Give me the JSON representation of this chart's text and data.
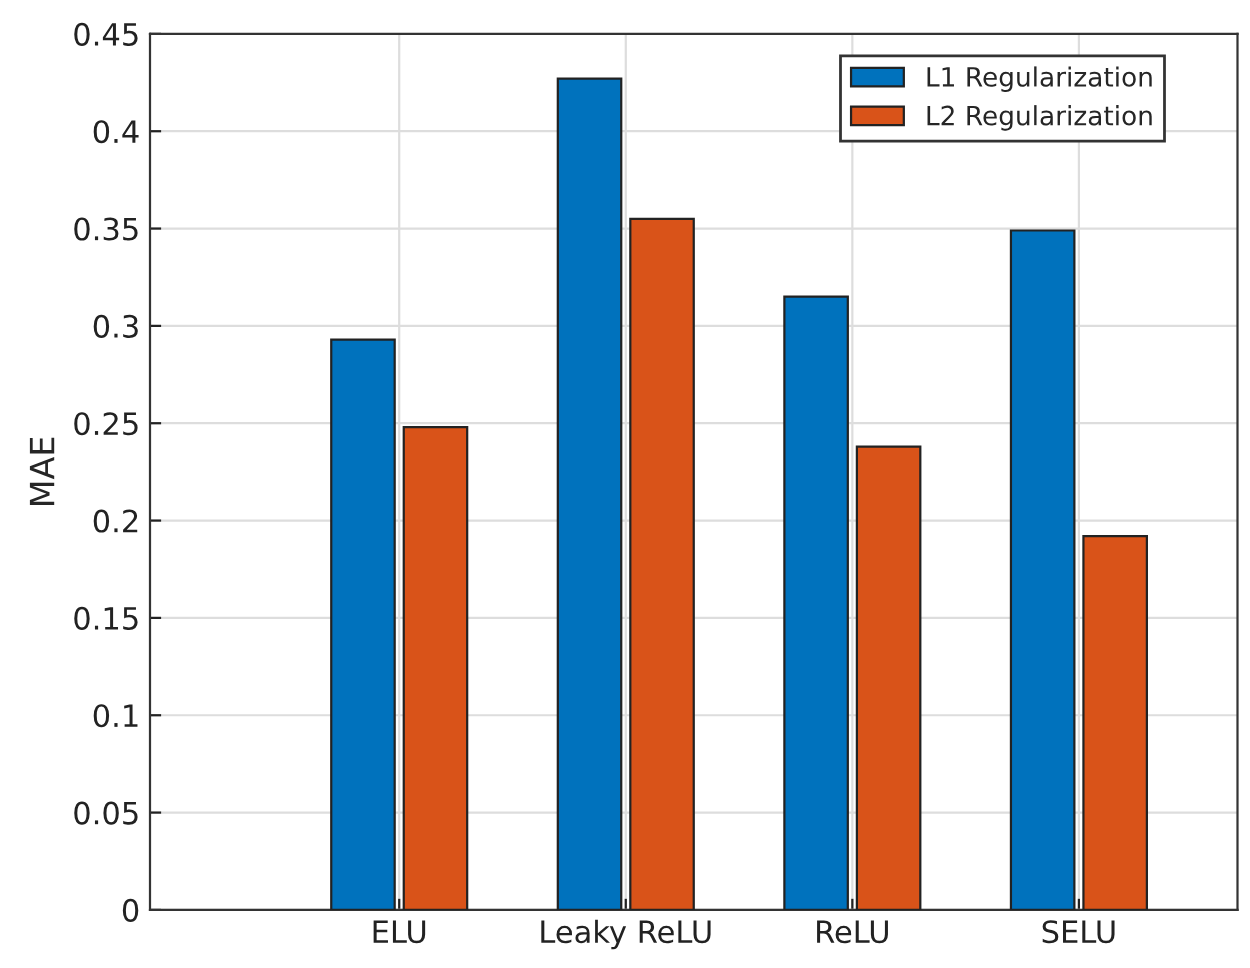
{
  "chart_data": {
    "type": "bar",
    "ylabel": "MAE",
    "categories": [
      "ELU",
      "Leaky ReLU",
      "ReLU",
      "SELU"
    ],
    "series": [
      {
        "name": "L1 Regularization",
        "color": "#0072bd",
        "values": [
          0.293,
          0.427,
          0.315,
          0.349
        ]
      },
      {
        "name": "L2 Regularization",
        "color": "#d95319",
        "values": [
          0.248,
          0.355,
          0.238,
          0.192
        ]
      }
    ],
    "ylim": [
      0,
      0.45
    ],
    "yticks": [
      0,
      0.05,
      0.1,
      0.15,
      0.2,
      0.25,
      0.3,
      0.35,
      0.4,
      0.45
    ],
    "grid": true,
    "legend": "top right"
  }
}
